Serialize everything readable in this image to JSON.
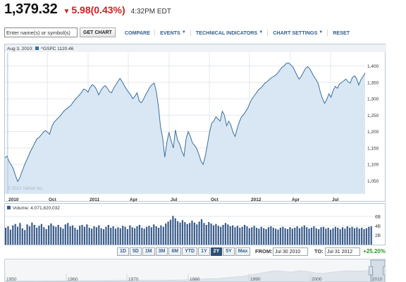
{
  "quote": {
    "price": "1,379.32",
    "change": "5.98",
    "change_pct": "(0.43%)",
    "time": "4:32PM EDT",
    "change_color": "#cc2222"
  },
  "toolbar": {
    "symbol_placeholder": "Enter name(s) or symbol(s)",
    "get_chart": "GET CHART",
    "compare": "COMPARE",
    "events": "EVENTS",
    "technical_indicators": "TECHNICAL INDICATORS",
    "chart_settings": "CHART SETTINGS",
    "reset": "RESET"
  },
  "legend": {
    "date": "Aug 3, 2010:",
    "series": "^GSPC 1120.46"
  },
  "watermark": "© 2012 Yahoo! Inc.",
  "volume_legend": "Volume: 4,071,820,032",
  "range_buttons": [
    "1D",
    "5D",
    "1M",
    "3M",
    "6M",
    "YTD",
    "1Y",
    "2Y",
    "5Y",
    "Max"
  ],
  "active_range": "2Y",
  "from_label": "FROM:",
  "from_value": "Jul 30 2010",
  "to_label": "TO:",
  "to_value": "Jul 31 2012",
  "range_change": "+25.20%",
  "range_change_color": "#2a9a2a",
  "chart_data": [
    {
      "type": "area",
      "x_ticks": [
        "2010",
        "Oct",
        "2011",
        "Apr",
        "Jul",
        "Oct",
        "2012",
        "Apr",
        "Jul"
      ],
      "y_ticks": [
        1050,
        1100,
        1150,
        1200,
        1250,
        1300,
        1350,
        1400
      ],
      "ylim": [
        1010,
        1440
      ],
      "grid": true,
      "line_color": "#3c6e9c",
      "fill_color": "#d9e7f4",
      "y": [
        1120,
        1125,
        1108,
        1098,
        1085,
        1065,
        1048,
        1060,
        1078,
        1095,
        1110,
        1125,
        1140,
        1152,
        1165,
        1178,
        1182,
        1190,
        1198,
        1203,
        1198,
        1192,
        1215,
        1228,
        1235,
        1242,
        1248,
        1257,
        1265,
        1269,
        1275,
        1280,
        1290,
        1298,
        1305,
        1312,
        1320,
        1330,
        1327,
        1320,
        1335,
        1343,
        1338,
        1328,
        1312,
        1325,
        1335,
        1340,
        1333,
        1322,
        1318,
        1332,
        1342,
        1353,
        1362,
        1352,
        1340,
        1330,
        1320,
        1312,
        1300,
        1308,
        1318,
        1293,
        1288,
        1298,
        1312,
        1323,
        1336,
        1343,
        1348,
        1322,
        1278,
        1215,
        1180,
        1122,
        1168,
        1198,
        1172,
        1150,
        1205,
        1175,
        1162,
        1140,
        1125,
        1178,
        1200,
        1185,
        1165,
        1158,
        1148,
        1130,
        1110,
        1100,
        1125,
        1160,
        1198,
        1225,
        1232,
        1245,
        1238,
        1232,
        1262,
        1250,
        1218,
        1232,
        1220,
        1198,
        1185,
        1210,
        1230,
        1245,
        1252,
        1262,
        1272,
        1288,
        1300,
        1310,
        1318,
        1328,
        1332,
        1340,
        1348,
        1352,
        1358,
        1364,
        1368,
        1372,
        1378,
        1388,
        1396,
        1400,
        1408,
        1410,
        1404,
        1398,
        1386,
        1372,
        1360,
        1368,
        1380,
        1392,
        1398,
        1392,
        1380,
        1368,
        1358,
        1346,
        1320,
        1300,
        1286,
        1298,
        1315,
        1305,
        1325,
        1338,
        1332,
        1345,
        1350,
        1355,
        1360,
        1352,
        1348,
        1365,
        1370,
        1362,
        1342,
        1358,
        1368,
        1379
      ]
    },
    {
      "type": "bar",
      "y_ticks": [
        "2B",
        "4B",
        "6B"
      ],
      "ylim": [
        0,
        6.6
      ],
      "grid": true,
      "bar_color": "#3a5c8a",
      "values": [
        3.6,
        3.9,
        3.2,
        4.1,
        4.4,
        3.8,
        4.6,
        3.5,
        3.1,
        4.3,
        3.9,
        4.7,
        4.2,
        3.6,
        4.0,
        4.4,
        3.7,
        3.3,
        4.1,
        4.5,
        4.0,
        3.8,
        4.2,
        3.7,
        3.4,
        4.3,
        4.6,
        3.9,
        4.1,
        3.6,
        3.2,
        4.0,
        4.2,
        3.8,
        4.3,
        3.6,
        3.4,
        3.9,
        3.7,
        4.1,
        3.5,
        3.3,
        3.8,
        4.2,
        3.6,
        3.9,
        3.4,
        3.7,
        3.5,
        4.0,
        3.8,
        3.3,
        4.1,
        3.7,
        3.5,
        3.9,
        4.2,
        3.6,
        3.4,
        3.8,
        4.0,
        3.7,
        4.3,
        3.9,
        3.6,
        4.1,
        3.8,
        4.5,
        4.9,
        5.3,
        6.1,
        5.6,
        5.0,
        4.7,
        5.2,
        4.8,
        4.4,
        4.6,
        5.1,
        4.7,
        4.3,
        4.9,
        5.4,
        4.6,
        4.2,
        4.8,
        4.5,
        4.1,
        4.4,
        4.0,
        3.8,
        4.2,
        4.6,
        4.3,
        3.9,
        4.1,
        3.7,
        4.0,
        3.6,
        3.8,
        4.2,
        3.9,
        3.5,
        3.7,
        4.0,
        3.6,
        3.4,
        3.8,
        3.5,
        3.3,
        3.7,
        3.9,
        3.6,
        3.4,
        3.2,
        3.6,
        3.8,
        3.5,
        3.3,
        3.7,
        3.4,
        3.6,
        3.9,
        3.5,
        3.8,
        4.1,
        3.7,
        3.4,
        3.6,
        3.9,
        3.5,
        3.3,
        3.7,
        3.8,
        3.4,
        3.6,
        3.2,
        3.5,
        3.8,
        3.6,
        3.3,
        3.7,
        3.4,
        3.9,
        3.6,
        3.8,
        3.5,
        3.7,
        3.4,
        3.6,
        3.3,
        3.5,
        3.8,
        3.9
      ]
    },
    {
      "type": "area",
      "x_ticks": [
        "1950",
        "1960",
        "1970",
        "1980",
        "1990",
        "2000",
        "2010"
      ],
      "fill_color": "#dfe5eb",
      "y": [
        2,
        3,
        3,
        4,
        5,
        6,
        7,
        8,
        9,
        9,
        10,
        10,
        11,
        11,
        12,
        12,
        13,
        13,
        14,
        15,
        16,
        18,
        20,
        24,
        30,
        36,
        40,
        50,
        60,
        70,
        90,
        110,
        130,
        150,
        140,
        130,
        150,
        140,
        120,
        110,
        130,
        140,
        150,
        145,
        150,
        160
      ]
    }
  ]
}
